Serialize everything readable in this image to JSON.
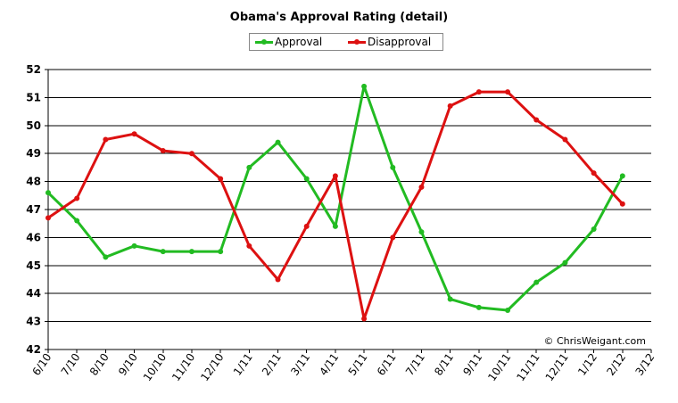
{
  "chart_data": {
    "type": "line",
    "title": "Obama's Approval Rating (detail)",
    "categories": [
      "6/10",
      "7/10",
      "8/10",
      "9/10",
      "10/10",
      "11/10",
      "12/10",
      "1/11",
      "2/11",
      "3/11",
      "4/11",
      "5/11",
      "6/11",
      "7/11",
      "8/11",
      "9/11",
      "10/11",
      "11/11",
      "12/11",
      "1/12",
      "2/12",
      "3/12"
    ],
    "ylim": [
      42,
      52
    ],
    "yticks": [
      42,
      43,
      44,
      45,
      46,
      47,
      48,
      49,
      50,
      51,
      52
    ],
    "grid": true,
    "legend_position": "top-center",
    "series": [
      {
        "name": "Approval",
        "color": "#22bb22",
        "values": [
          47.6,
          46.6,
          45.3,
          45.7,
          45.5,
          45.5,
          45.5,
          48.5,
          49.4,
          48.1,
          46.4,
          51.4,
          48.5,
          46.2,
          43.8,
          43.5,
          43.4,
          44.4,
          45.1,
          46.3,
          48.2,
          null
        ]
      },
      {
        "name": "Disapproval",
        "color": "#dd1111",
        "values": [
          46.7,
          47.4,
          49.5,
          49.7,
          49.1,
          49.0,
          48.1,
          45.7,
          44.5,
          46.4,
          48.2,
          43.1,
          46.0,
          47.8,
          50.7,
          51.2,
          51.2,
          50.2,
          49.5,
          48.3,
          47.2,
          null
        ]
      }
    ],
    "annotation": "© ChrisWeigant.com"
  }
}
